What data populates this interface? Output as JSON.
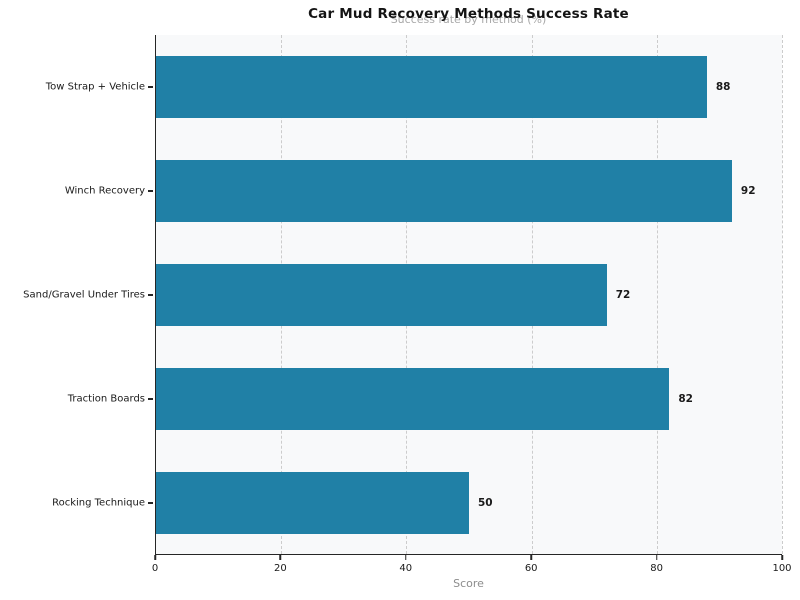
{
  "chart_data": {
    "type": "bar",
    "orientation": "horizontal",
    "title": "Car Mud Recovery Methods Success Rate",
    "subtitle": "Success rate by method (%)",
    "xlabel": "Score",
    "ylabel": "",
    "categories": [
      "Tow Strap + Vehicle",
      "Winch Recovery",
      "Sand/Gravel Under Tires",
      "Traction Boards",
      "Rocking Technique"
    ],
    "values": [
      88,
      92,
      72,
      82,
      50
    ],
    "xlim": [
      0,
      100
    ],
    "xticks": [
      0,
      20,
      40,
      60,
      80,
      100
    ],
    "grid": "vertical dashed at x ticks, behind bars",
    "legend": "none",
    "colors": {
      "bar": "#2080a6",
      "plot_background": "#f8f9fa",
      "page_background": "#ffffff",
      "grid": "#cccccc",
      "spine": "#262626",
      "title_text": "#141414",
      "subtitle_text": "#a8a8a8",
      "axis_label_text": "#8c8c8c",
      "tick_text": "#1a1a1a"
    }
  }
}
